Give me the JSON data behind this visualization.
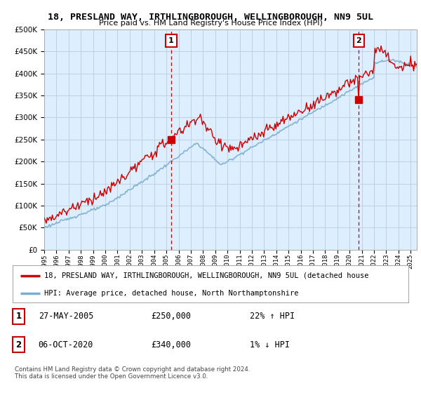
{
  "title": "18, PRESLAND WAY, IRTHLINGBOROUGH, WELLINGBOROUGH, NN9 5UL",
  "subtitle": "Price paid vs. HM Land Registry's House Price Index (HPI)",
  "ylim": [
    0,
    500000
  ],
  "yticks": [
    0,
    50000,
    100000,
    150000,
    200000,
    250000,
    300000,
    350000,
    400000,
    450000,
    500000
  ],
  "legend_line1": "18, PRESLAND WAY, IRTHLINGBOROUGH, WELLINGBOROUGH, NN9 5UL (detached house",
  "legend_line2": "HPI: Average price, detached house, North Northamptonshire",
  "marker1_date": "27-MAY-2005",
  "marker1_price": 250000,
  "marker1_year": 2005.4,
  "marker1_hpi_text": "22% ↑ HPI",
  "marker2_date": "06-OCT-2020",
  "marker2_price": 340000,
  "marker2_year": 2020.76,
  "marker2_hpi_text": "1% ↓ HPI",
  "footer": "Contains HM Land Registry data © Crown copyright and database right 2024.\nThis data is licensed under the Open Government Licence v3.0.",
  "line_color_red": "#cc0000",
  "line_color_blue": "#7aadcf",
  "bg_chart": "#ddeeff",
  "background_color": "#ffffff",
  "grid_color": "#bbccdd",
  "vline_color": "#cc0000",
  "marker_box_color": "#cc0000"
}
